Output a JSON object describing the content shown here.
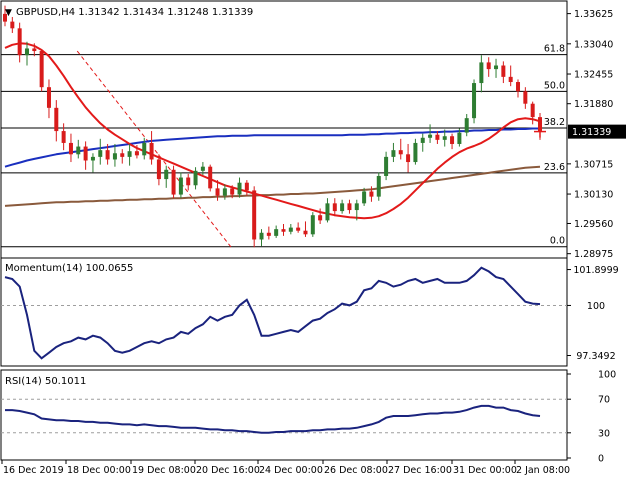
{
  "header": {
    "arrow": "▼",
    "text": "GBPUSD,H4  1.31342 1.31434 1.31248 1.31339"
  },
  "colors": {
    "up_candle": "#2e7d32",
    "down_candle": "#d81b1b",
    "sma_short": "#e31a1a",
    "sma_mid": "#1a2fbf",
    "sma_long": "#8a5a3c",
    "indicator_line": "#1a237e",
    "trend_line": "#e31a1a",
    "price_tag_bg": "#000000",
    "crosshair": "#e31a1a"
  },
  "chart_data": [
    {
      "type": "candlestick",
      "symbol": "GBPUSD",
      "timeframe": "H4",
      "ohlc_last": {
        "open": 1.31342,
        "high": 1.31434,
        "low": 1.31248,
        "close": 1.31339
      },
      "ylim": [
        1.2893,
        1.3385
      ],
      "y_ticks": [
        "1.33625",
        "1.33040",
        "1.32455",
        "1.31880",
        "1.31339",
        "1.30715",
        "1.30130",
        "1.29560",
        "1.28975"
      ],
      "current_price": "1.31339",
      "x_labels": [
        "16 Dec 2019",
        "18 Dec 00:00",
        "19 Dec 08:00",
        "20 Dec 16:00",
        "24 Dec 00:00",
        "26 Dec 08:00",
        "27 Dec 16:00",
        "31 Dec 00:00",
        "2 Jan 08:00"
      ],
      "fibonacci": [
        {
          "label": "61.8",
          "value": 1.3283
        },
        {
          "label": "50.0",
          "value": 1.3212
        },
        {
          "label": "38.2",
          "value": 1.3141
        },
        {
          "label": "23.6",
          "value": 1.3054
        },
        {
          "label": "0.0",
          "value": 1.2911
        }
      ],
      "trend_line": {
        "from": [
          1.329,
          0.135
        ],
        "to": [
          1.2907,
          0.425
        ]
      },
      "candles": [
        {
          "o": 1.3362,
          "h": 1.3378,
          "l": 1.3338,
          "c": 1.3347
        },
        {
          "o": 1.3347,
          "h": 1.3356,
          "l": 1.3325,
          "c": 1.3334
        },
        {
          "o": 1.3334,
          "h": 1.3345,
          "l": 1.3268,
          "c": 1.3282
        },
        {
          "o": 1.3282,
          "h": 1.3308,
          "l": 1.3262,
          "c": 1.3295
        },
        {
          "o": 1.3295,
          "h": 1.3305,
          "l": 1.328,
          "c": 1.329
        },
        {
          "o": 1.329,
          "h": 1.3292,
          "l": 1.3212,
          "c": 1.322
        },
        {
          "o": 1.322,
          "h": 1.3235,
          "l": 1.316,
          "c": 1.318
        },
        {
          "o": 1.318,
          "h": 1.3195,
          "l": 1.3115,
          "c": 1.3135
        },
        {
          "o": 1.3135,
          "h": 1.315,
          "l": 1.3098,
          "c": 1.3112
        },
        {
          "o": 1.3112,
          "h": 1.313,
          "l": 1.3075,
          "c": 1.309
        },
        {
          "o": 1.309,
          "h": 1.3118,
          "l": 1.3082,
          "c": 1.3105
        },
        {
          "o": 1.3105,
          "h": 1.3115,
          "l": 1.306,
          "c": 1.3078
        },
        {
          "o": 1.3078,
          "h": 1.3092,
          "l": 1.3055,
          "c": 1.3085
        },
        {
          "o": 1.3085,
          "h": 1.312,
          "l": 1.307,
          "c": 1.3098
        },
        {
          "o": 1.3098,
          "h": 1.311,
          "l": 1.307,
          "c": 1.308
        },
        {
          "o": 1.308,
          "h": 1.311,
          "l": 1.3066,
          "c": 1.3092
        },
        {
          "o": 1.3092,
          "h": 1.31,
          "l": 1.3072,
          "c": 1.3085
        },
        {
          "o": 1.3085,
          "h": 1.311,
          "l": 1.3068,
          "c": 1.3096
        },
        {
          "o": 1.3096,
          "h": 1.3108,
          "l": 1.3082,
          "c": 1.3088
        },
        {
          "o": 1.3088,
          "h": 1.3122,
          "l": 1.308,
          "c": 1.3112
        },
        {
          "o": 1.3112,
          "h": 1.3135,
          "l": 1.307,
          "c": 1.308
        },
        {
          "o": 1.308,
          "h": 1.309,
          "l": 1.303,
          "c": 1.3042
        },
        {
          "o": 1.3042,
          "h": 1.3068,
          "l": 1.3025,
          "c": 1.306
        },
        {
          "o": 1.306,
          "h": 1.3068,
          "l": 1.3005,
          "c": 1.3012
        },
        {
          "o": 1.3012,
          "h": 1.3055,
          "l": 1.3005,
          "c": 1.3045
        },
        {
          "o": 1.3045,
          "h": 1.3052,
          "l": 1.302,
          "c": 1.303
        },
        {
          "o": 1.303,
          "h": 1.3065,
          "l": 1.3022,
          "c": 1.3058
        },
        {
          "o": 1.3058,
          "h": 1.3075,
          "l": 1.305,
          "c": 1.3066
        },
        {
          "o": 1.3066,
          "h": 1.307,
          "l": 1.3018,
          "c": 1.3024
        },
        {
          "o": 1.3024,
          "h": 1.304,
          "l": 1.3,
          "c": 1.301
        },
        {
          "o": 1.301,
          "h": 1.3032,
          "l": 1.3002,
          "c": 1.3024
        },
        {
          "o": 1.3024,
          "h": 1.303,
          "l": 1.3005,
          "c": 1.3012
        },
        {
          "o": 1.3012,
          "h": 1.3045,
          "l": 1.3006,
          "c": 1.3035
        },
        {
          "o": 1.3035,
          "h": 1.304,
          "l": 1.301,
          "c": 1.302
        },
        {
          "o": 1.302,
          "h": 1.3028,
          "l": 1.291,
          "c": 1.2925
        },
        {
          "o": 1.2925,
          "h": 1.2945,
          "l": 1.2912,
          "c": 1.2938
        },
        {
          "o": 1.2938,
          "h": 1.295,
          "l": 1.2925,
          "c": 1.2932
        },
        {
          "o": 1.2932,
          "h": 1.2952,
          "l": 1.2928,
          "c": 1.2945
        },
        {
          "o": 1.2945,
          "h": 1.2955,
          "l": 1.2932,
          "c": 1.294
        },
        {
          "o": 1.294,
          "h": 1.2955,
          "l": 1.2935,
          "c": 1.2948
        },
        {
          "o": 1.2948,
          "h": 1.2958,
          "l": 1.2938,
          "c": 1.2942
        },
        {
          "o": 1.2942,
          "h": 1.296,
          "l": 1.293,
          "c": 1.2935
        },
        {
          "o": 1.2935,
          "h": 1.2978,
          "l": 1.293,
          "c": 1.2972
        },
        {
          "o": 1.2972,
          "h": 1.2985,
          "l": 1.2955,
          "c": 1.2962
        },
        {
          "o": 1.2962,
          "h": 1.3005,
          "l": 1.2958,
          "c": 1.2995
        },
        {
          "o": 1.2995,
          "h": 1.3005,
          "l": 1.297,
          "c": 1.298
        },
        {
          "o": 1.298,
          "h": 1.3002,
          "l": 1.2975,
          "c": 1.2995
        },
        {
          "o": 1.2995,
          "h": 1.3002,
          "l": 1.2975,
          "c": 1.2982
        },
        {
          "o": 1.2982,
          "h": 1.3002,
          "l": 1.2962,
          "c": 1.2995
        },
        {
          "o": 1.2995,
          "h": 1.3025,
          "l": 1.299,
          "c": 1.3018
        },
        {
          "o": 1.3018,
          "h": 1.3028,
          "l": 1.2998,
          "c": 1.3008
        },
        {
          "o": 1.3008,
          "h": 1.3055,
          "l": 1.3,
          "c": 1.3048
        },
        {
          "o": 1.3048,
          "h": 1.3095,
          "l": 1.304,
          "c": 1.3085
        },
        {
          "o": 1.3085,
          "h": 1.3112,
          "l": 1.3075,
          "c": 1.3098
        },
        {
          "o": 1.3098,
          "h": 1.312,
          "l": 1.308,
          "c": 1.309
        },
        {
          "o": 1.309,
          "h": 1.311,
          "l": 1.3055,
          "c": 1.3075
        },
        {
          "o": 1.3075,
          "h": 1.312,
          "l": 1.307,
          "c": 1.3112
        },
        {
          "o": 1.3112,
          "h": 1.313,
          "l": 1.3095,
          "c": 1.3122
        },
        {
          "o": 1.3122,
          "h": 1.3148,
          "l": 1.3112,
          "c": 1.3128
        },
        {
          "o": 1.3128,
          "h": 1.3135,
          "l": 1.311,
          "c": 1.3118
        },
        {
          "o": 1.3118,
          "h": 1.3138,
          "l": 1.3105,
          "c": 1.3125
        },
        {
          "o": 1.3125,
          "h": 1.313,
          "l": 1.31,
          "c": 1.311
        },
        {
          "o": 1.311,
          "h": 1.314,
          "l": 1.3105,
          "c": 1.3132
        },
        {
          "o": 1.3132,
          "h": 1.3168,
          "l": 1.3125,
          "c": 1.316
        },
        {
          "o": 1.316,
          "h": 1.3235,
          "l": 1.315,
          "c": 1.3228
        },
        {
          "o": 1.3228,
          "h": 1.3282,
          "l": 1.321,
          "c": 1.3268
        },
        {
          "o": 1.3268,
          "h": 1.3278,
          "l": 1.324,
          "c": 1.3255
        },
        {
          "o": 1.3255,
          "h": 1.3275,
          "l": 1.3238,
          "c": 1.3262
        },
        {
          "o": 1.3262,
          "h": 1.327,
          "l": 1.3228,
          "c": 1.324
        },
        {
          "o": 1.324,
          "h": 1.3262,
          "l": 1.3222,
          "c": 1.323
        },
        {
          "o": 1.323,
          "h": 1.3235,
          "l": 1.32,
          "c": 1.3212
        },
        {
          "o": 1.3212,
          "h": 1.322,
          "l": 1.3178,
          "c": 1.3188
        },
        {
          "o": 1.3188,
          "h": 1.3192,
          "l": 1.3148,
          "c": 1.3162
        },
        {
          "o": 1.3162,
          "h": 1.317,
          "l": 1.3118,
          "c": 1.3134
        }
      ],
      "sma_short": [
        1.3296,
        1.3302,
        1.3305,
        1.3304,
        1.33,
        1.3292,
        1.328,
        1.3262,
        1.3242,
        1.322,
        1.32,
        1.3181,
        1.3165,
        1.315,
        1.3138,
        1.3128,
        1.3119,
        1.311,
        1.3102,
        1.3096,
        1.309,
        1.3084,
        1.3078,
        1.3072,
        1.3066,
        1.306,
        1.3054,
        1.3048,
        1.3042,
        1.3036,
        1.303,
        1.3026,
        1.3022,
        1.3018,
        1.3014,
        1.301,
        1.3006,
        1.3002,
        1.2998,
        1.2994,
        1.299,
        1.2986,
        1.2982,
        1.2978,
        1.2975,
        1.2972,
        1.297,
        1.2968,
        1.2967,
        1.2966,
        1.2967,
        1.297,
        1.2976,
        1.2984,
        1.2994,
        1.3006,
        1.302,
        1.3034,
        1.3048,
        1.3062,
        1.3074,
        1.3085,
        1.3094,
        1.3101,
        1.3106,
        1.3112,
        1.312,
        1.313,
        1.3142,
        1.3152,
        1.3158,
        1.316,
        1.3158,
        1.3154
      ],
      "sma_mid": [
        1.3066,
        1.307,
        1.3074,
        1.3078,
        1.3081,
        1.3084,
        1.3087,
        1.309,
        1.3092,
        1.3094,
        1.3096,
        1.3098,
        1.31,
        1.3102,
        1.3104,
        1.3106,
        1.3108,
        1.311,
        1.3112,
        1.3114,
        1.3116,
        1.3117,
        1.3118,
        1.3119,
        1.312,
        1.3121,
        1.3122,
        1.3123,
        1.3124,
        1.3125,
        1.3125,
        1.3126,
        1.3126,
        1.3126,
        1.3127,
        1.3127,
        1.3127,
        1.3127,
        1.3127,
        1.3127,
        1.3127,
        1.3127,
        1.3127,
        1.3127,
        1.3127,
        1.3127,
        1.3127,
        1.3128,
        1.3128,
        1.3128,
        1.3129,
        1.3129,
        1.313,
        1.313,
        1.3131,
        1.3131,
        1.3132,
        1.3132,
        1.3133,
        1.3133,
        1.3134,
        1.3134,
        1.3135,
        1.3135,
        1.3136,
        1.3136,
        1.3137,
        1.3137,
        1.3138,
        1.3138,
        1.3139,
        1.3139,
        1.314,
        1.314
      ],
      "sma_long": [
        1.299,
        1.2991,
        1.2992,
        1.2993,
        1.2994,
        1.2995,
        1.2996,
        1.2997,
        1.2997,
        1.2998,
        1.2998,
        1.2999,
        1.2999,
        1.3,
        1.3,
        1.3001,
        1.3001,
        1.3002,
        1.3002,
        1.3003,
        1.3003,
        1.3004,
        1.3004,
        1.3005,
        1.3005,
        1.3006,
        1.3006,
        1.3007,
        1.3007,
        1.3008,
        1.3008,
        1.3009,
        1.3009,
        1.301,
        1.301,
        1.3011,
        1.3011,
        1.3012,
        1.3012,
        1.3013,
        1.3013,
        1.3014,
        1.3014,
        1.3015,
        1.3016,
        1.3017,
        1.3018,
        1.3019,
        1.302,
        1.3021,
        1.3022,
        1.3024,
        1.3026,
        1.3028,
        1.303,
        1.3032,
        1.3034,
        1.3036,
        1.3038,
        1.304,
        1.3042,
        1.3044,
        1.3046,
        1.3048,
        1.305,
        1.3052,
        1.3054,
        1.3056,
        1.3058,
        1.306,
        1.3062,
        1.3064,
        1.3065,
        1.3066
      ]
    },
    {
      "type": "line",
      "title": "Momentum(14) 100.0655",
      "ylim": [
        96.9,
        102.3
      ],
      "y_ticks": [
        "101.8999",
        "100",
        "97.3492"
      ],
      "level": 100,
      "values": [
        101.5,
        101.4,
        101.0,
        99.5,
        97.6,
        97.2,
        97.5,
        97.8,
        98.0,
        98.1,
        98.3,
        98.2,
        98.4,
        98.3,
        98.0,
        97.6,
        97.5,
        97.6,
        97.8,
        98.0,
        98.1,
        98.0,
        98.2,
        98.3,
        98.6,
        98.5,
        98.8,
        99.0,
        99.4,
        99.2,
        99.4,
        99.5,
        100.0,
        100.3,
        99.5,
        98.4,
        98.4,
        98.5,
        98.6,
        98.7,
        98.6,
        98.9,
        99.2,
        99.3,
        99.6,
        99.8,
        100.1,
        100.0,
        100.2,
        100.8,
        100.9,
        101.3,
        101.2,
        101.0,
        101.1,
        101.3,
        101.4,
        101.2,
        101.3,
        101.4,
        101.2,
        101.2,
        101.2,
        101.3,
        101.6,
        102.0,
        101.8,
        101.5,
        101.4,
        101.0,
        100.6,
        100.2,
        100.1,
        100.07
      ]
    },
    {
      "type": "line",
      "title": "RSI(14) 50.1011",
      "ylim": [
        0,
        100
      ],
      "y_ticks": [
        "100",
        "70",
        "30",
        "0"
      ],
      "levels": [
        70,
        30
      ],
      "values": [
        57,
        57,
        56,
        54,
        52,
        47,
        46,
        45,
        45,
        44,
        44,
        43,
        43,
        42,
        42,
        41,
        40,
        40,
        39,
        40,
        39,
        38,
        38,
        37,
        36,
        36,
        36,
        35,
        34,
        34,
        33,
        33,
        32,
        32,
        31,
        30,
        30,
        31,
        31,
        32,
        32,
        32,
        33,
        33,
        34,
        34,
        35,
        35,
        36,
        38,
        40,
        43,
        48,
        50,
        50,
        50,
        51,
        52,
        53,
        53,
        54,
        54,
        55,
        57,
        60,
        62,
        62,
        60,
        60,
        57,
        56,
        53,
        51,
        50
      ]
    }
  ]
}
